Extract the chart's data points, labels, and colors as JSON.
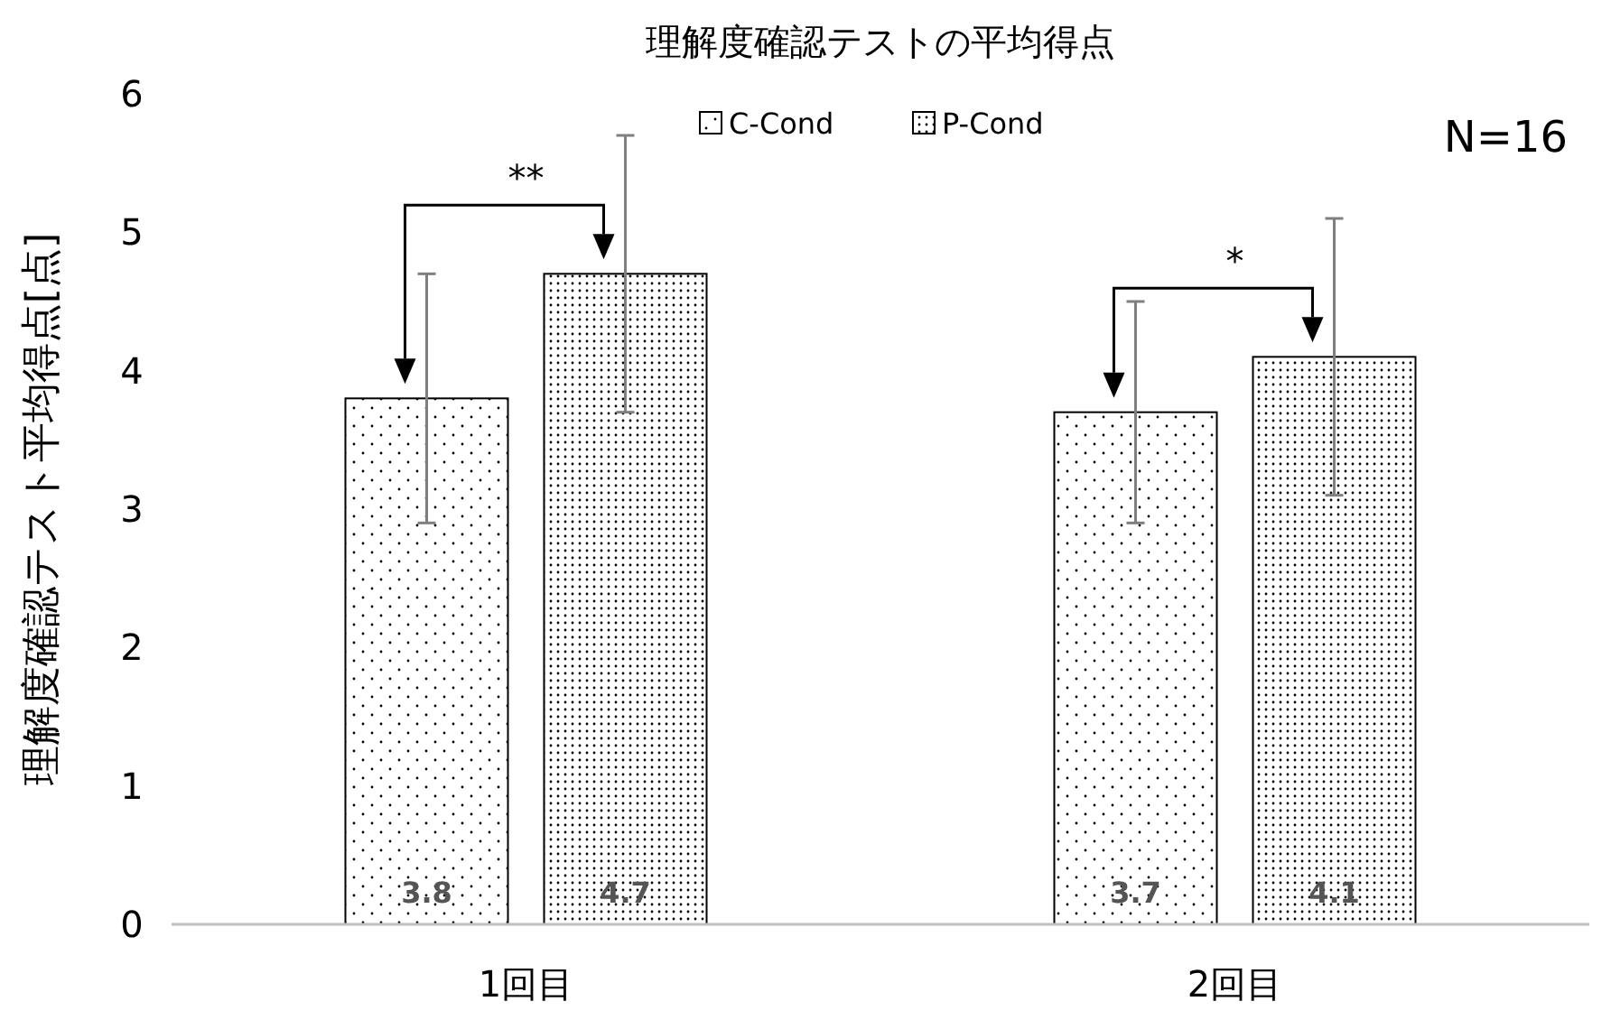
{
  "chart_data": {
    "type": "bar",
    "title": "理解度確認テストの平均得点",
    "ylabel": "理解度確認テスト平均得点[点]",
    "categories": [
      "1回目",
      "2回目"
    ],
    "series": [
      {
        "name": "C-Cond",
        "color": "#000000",
        "values": [
          3.8,
          3.7
        ],
        "errors": [
          0.9,
          0.8
        ]
      },
      {
        "name": "P-Cond",
        "color": "#000000",
        "values": [
          4.7,
          4.1
        ],
        "errors": [
          1.0,
          1.0
        ]
      }
    ],
    "ylim": [
      0,
      6
    ],
    "yticks": [
      0,
      1,
      2,
      3,
      4,
      5,
      6
    ],
    "grid": false,
    "legend": "top",
    "data_labels": true,
    "annotations": [
      "**",
      "*",
      "N=16"
    ]
  }
}
